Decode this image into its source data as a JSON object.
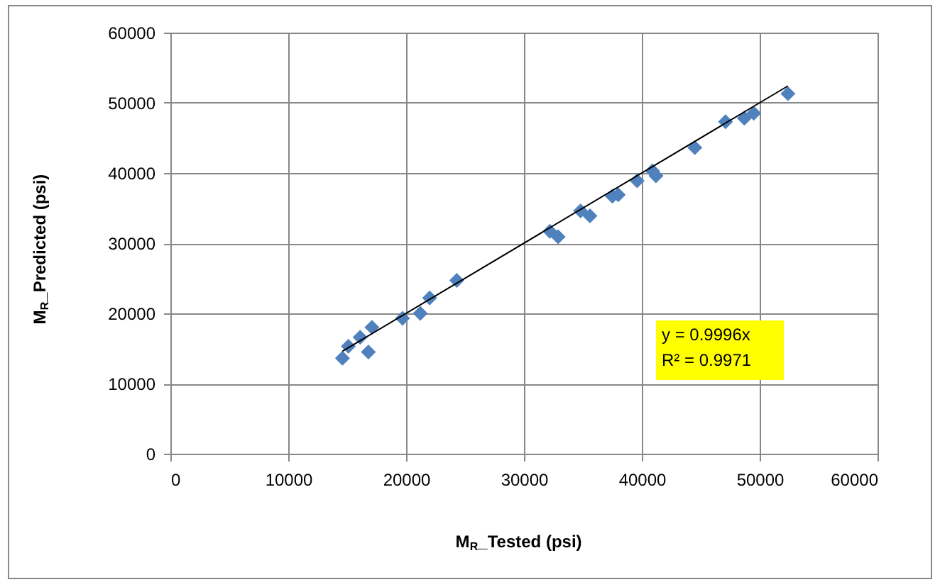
{
  "chart_data": {
    "type": "scatter",
    "xlabel": "M$_{R}$_Tested (psi)",
    "ylabel": "M$_{R}$_Predicted (psi)",
    "series": [
      {
        "color": "#4f81bd",
        "marker": "diamond",
        "x": [
          14600,
          15100,
          16100,
          17100,
          16800,
          19700,
          21200,
          22000,
          24300,
          32200,
          32900,
          34800,
          35600,
          37500,
          38000,
          39600,
          40900,
          41200,
          44500,
          47100,
          48700,
          49500,
          52400
        ],
        "values": [
          13600,
          15300,
          16600,
          18000,
          14500,
          19300,
          20000,
          22200,
          24700,
          31700,
          30900,
          34600,
          33900,
          36700,
          36900,
          38900,
          40300,
          39600,
          43600,
          47300,
          47800,
          48500,
          51300
        ]
      },
      {
        "type": "line",
        "color": "#000000",
        "x": [
          14600,
          52400
        ],
        "values": [
          14600,
          52400
        ]
      }
    ],
    "annotations": [
      "y = 0.9996x",
      "R² = 0.9971"
    ],
    "xlim": [
      0,
      60000
    ],
    "ylim": [
      0,
      60000
    ],
    "xticks": [
      0,
      10000,
      20000,
      30000,
      40000,
      50000,
      60000
    ],
    "yticks": [
      0,
      10000,
      20000,
      30000,
      40000,
      50000,
      60000
    ],
    "grid": true
  }
}
